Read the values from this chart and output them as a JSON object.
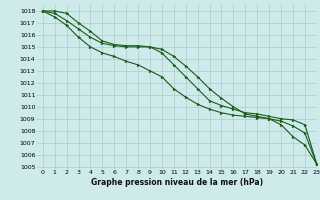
{
  "title": "Graphe pression niveau de la mer (hPa)",
  "background_color": "#ceeaea",
  "grid_color": "#aacccc",
  "line_color": "#1a5c1a",
  "xlim": [
    -0.5,
    23
  ],
  "ylim": [
    1004.8,
    1018.5
  ],
  "xticks": [
    0,
    1,
    2,
    3,
    4,
    5,
    6,
    7,
    8,
    9,
    10,
    11,
    12,
    13,
    14,
    15,
    16,
    17,
    18,
    19,
    20,
    21,
    22,
    23
  ],
  "yticks": [
    1005,
    1006,
    1007,
    1008,
    1009,
    1010,
    1011,
    1012,
    1013,
    1014,
    1015,
    1016,
    1017,
    1018
  ],
  "series1_x": [
    0,
    1,
    2,
    3,
    4,
    5,
    6,
    7,
    8,
    9,
    10,
    11,
    12,
    13,
    14,
    15,
    16,
    17,
    18,
    19,
    20,
    21,
    22,
    23
  ],
  "series1_y": [
    1018.0,
    1017.8,
    1017.2,
    1016.5,
    1015.8,
    1015.3,
    1015.1,
    1015.0,
    1015.0,
    1015.0,
    1014.8,
    1014.2,
    1013.4,
    1012.5,
    1011.5,
    1010.7,
    1010.0,
    1009.4,
    1009.2,
    1009.0,
    1008.8,
    1008.4,
    1007.8,
    1005.2
  ],
  "series2_x": [
    0,
    1,
    2,
    3,
    4,
    5,
    6,
    7,
    8,
    9,
    10,
    11,
    12,
    13,
    14,
    15,
    16,
    17,
    18,
    19,
    20,
    21,
    22,
    23
  ],
  "series2_y": [
    1018.0,
    1018.0,
    1017.8,
    1017.0,
    1016.3,
    1015.5,
    1015.2,
    1015.1,
    1015.1,
    1015.0,
    1014.5,
    1013.5,
    1012.5,
    1011.5,
    1010.5,
    1010.1,
    1009.8,
    1009.5,
    1009.4,
    1009.2,
    1009.0,
    1008.9,
    1008.5,
    1005.2
  ],
  "series3_x": [
    0,
    1,
    2,
    3,
    4,
    5,
    6,
    7,
    8,
    9,
    10,
    11,
    12,
    13,
    14,
    15,
    16,
    17,
    18,
    19,
    20,
    21,
    22,
    23
  ],
  "series3_y": [
    1018.0,
    1017.5,
    1016.8,
    1015.8,
    1015.0,
    1014.5,
    1014.2,
    1013.8,
    1013.5,
    1013.0,
    1012.5,
    1011.5,
    1010.8,
    1010.2,
    1009.8,
    1009.5,
    1009.3,
    1009.2,
    1009.1,
    1009.0,
    1008.5,
    1007.5,
    1006.8,
    1005.2
  ]
}
